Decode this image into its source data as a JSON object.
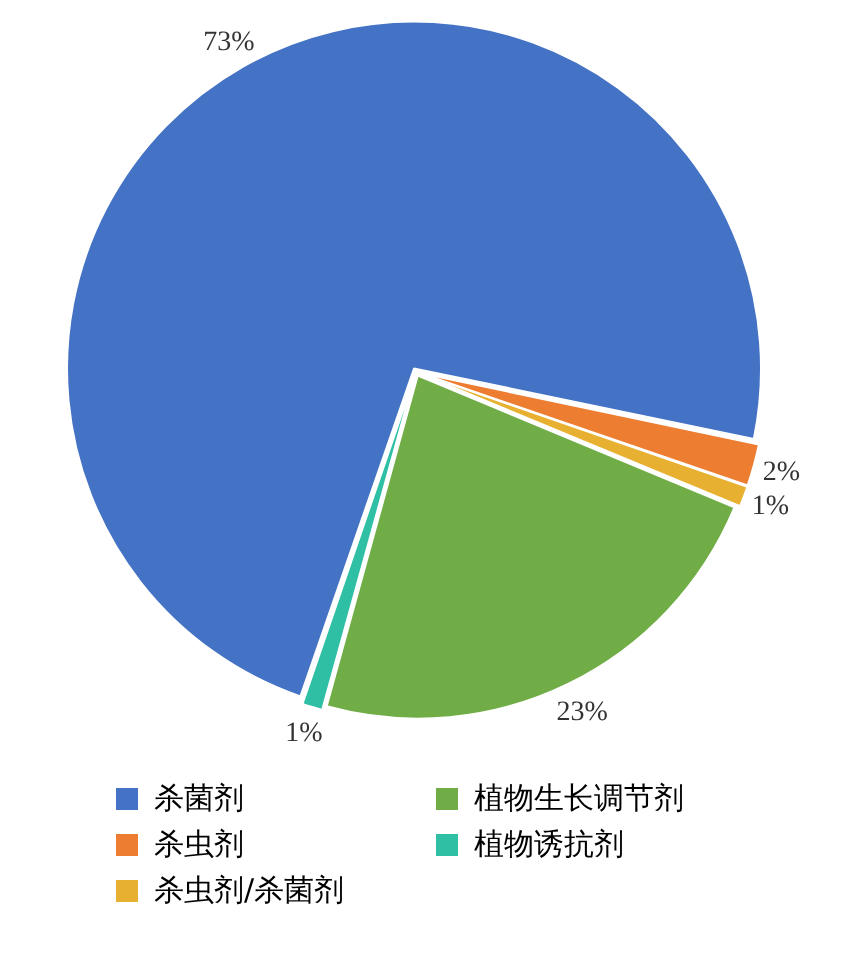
{
  "chart_data": {
    "type": "pie",
    "categories": [
      "杀菌剂",
      "杀虫剂",
      "杀虫剂/杀菌剂",
      "植物生长调节剂",
      "植物诱抗剂"
    ],
    "values": [
      73,
      2,
      1,
      23,
      1
    ],
    "colors": [
      "#4472c4",
      "#ed7d31",
      "#e8b030",
      "#70ad47",
      "#2ebfa5"
    ],
    "value_labels": [
      "73%",
      "2%",
      "1%",
      "23%",
      "1%"
    ],
    "legend": "bottom"
  }
}
